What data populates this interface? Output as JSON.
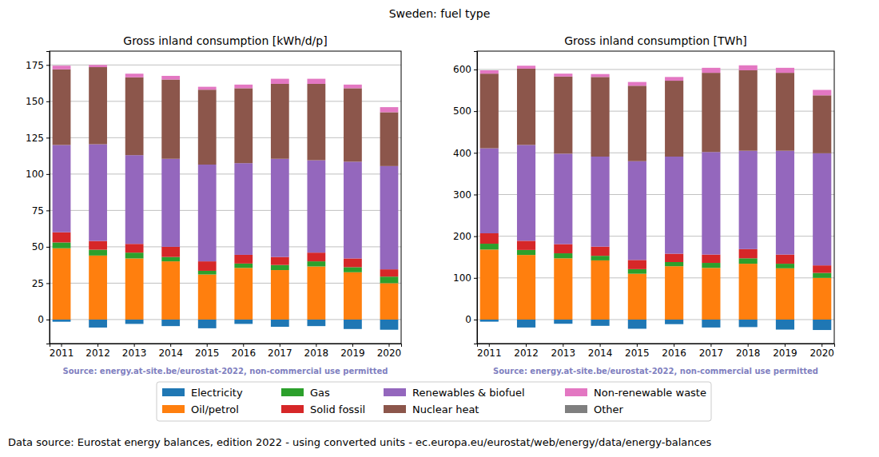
{
  "title": "Sweden: fuel type",
  "footer": "Data source: Eurostat energy balances, edition 2022 - using converted units - ec.europa.eu/eurostat/web/energy/data/energy-balances",
  "chart_data": [
    {
      "type": "bar",
      "stacked": true,
      "grid": true,
      "legend": "bottom",
      "title": "Gross inland consumption [kWh/d/p]",
      "annotation": "Source: energy.at-site.be/eurostat-2022, non-commercial use permitted",
      "categories": [
        "2011",
        "2012",
        "2013",
        "2014",
        "2015",
        "2016",
        "2017",
        "2018",
        "2019",
        "2020"
      ],
      "ylim": [
        -16.5,
        184.5
      ],
      "yticks": [
        0,
        25,
        50,
        75,
        100,
        125,
        150,
        175
      ],
      "series": [
        {
          "name": "Electricity",
          "color": "#1f77b4",
          "values": [
            -1.5,
            -5.5,
            -3,
            -4.5,
            -6,
            -3,
            -5,
            -4.5,
            -6.5,
            -7
          ]
        },
        {
          "name": "Oil/petrol",
          "color": "#ff7f0e",
          "values": [
            49,
            44,
            42,
            40,
            31,
            35.5,
            34,
            36.5,
            32.5,
            25
          ]
        },
        {
          "name": "Gas",
          "color": "#2ca02c",
          "values": [
            4,
            4,
            4,
            3,
            2.5,
            3,
            3.5,
            3.5,
            3.5,
            4.5
          ]
        },
        {
          "name": "Solid fossil",
          "color": "#d62728",
          "values": [
            7,
            6,
            6,
            7,
            6.5,
            6,
            5.5,
            6,
            6,
            5
          ]
        },
        {
          "name": "Renewables & biofuel",
          "color": "#9467bd",
          "values": [
            60,
            66.5,
            61,
            60.5,
            66.5,
            63,
            67.5,
            63.5,
            66.5,
            71
          ]
        },
        {
          "name": "Nuclear heat",
          "color": "#8c564b",
          "values": [
            52,
            53,
            53.5,
            54.5,
            51.5,
            51.5,
            51.5,
            52.5,
            50.5,
            37
          ]
        },
        {
          "name": "Non-renewable waste",
          "color": "#e377c2",
          "values": [
            2.5,
            1.5,
            2.5,
            2.5,
            2,
            2.5,
            3.5,
            3.5,
            2.5,
            3.5
          ]
        },
        {
          "name": "Other",
          "color": "#7f7f7f",
          "values": [
            0,
            0,
            0,
            0,
            0,
            0,
            0,
            0,
            0,
            0
          ]
        }
      ]
    },
    {
      "type": "bar",
      "stacked": true,
      "grid": true,
      "title": "Gross inland consumption [TWh]",
      "annotation": "Source: energy.at-site.be/eurostat-2022, non-commercial use permitted",
      "categories": [
        "2011",
        "2012",
        "2013",
        "2014",
        "2015",
        "2016",
        "2017",
        "2018",
        "2019",
        "2020"
      ],
      "ylim": [
        -57.5,
        644
      ],
      "yticks": [
        0,
        100,
        200,
        300,
        400,
        500,
        600
      ],
      "series": [
        {
          "name": "Electricity",
          "color": "#1f77b4",
          "values": [
            -5,
            -19,
            -10,
            -15,
            -22,
            -11,
            -19,
            -18,
            -24,
            -25
          ]
        },
        {
          "name": "Oil/petrol",
          "color": "#ff7f0e",
          "values": [
            168,
            155,
            147,
            142,
            110,
            128,
            124,
            134,
            123,
            100
          ]
        },
        {
          "name": "Gas",
          "color": "#2ca02c",
          "values": [
            14,
            12,
            12,
            11,
            11,
            10,
            12,
            13,
            11,
            12
          ]
        },
        {
          "name": "Solid fossil",
          "color": "#d62728",
          "values": [
            25,
            22,
            22,
            22,
            22,
            20,
            20,
            22,
            22,
            18
          ]
        },
        {
          "name": "Renewables & biofuel",
          "color": "#9467bd",
          "values": [
            204,
            230,
            217,
            216,
            237,
            233,
            246,
            236,
            249,
            269
          ]
        },
        {
          "name": "Nuclear heat",
          "color": "#8c564b",
          "values": [
            179,
            183,
            185,
            191,
            181,
            182,
            190,
            193,
            187,
            139
          ]
        },
        {
          "name": "Non-renewable waste",
          "color": "#e377c2",
          "values": [
            8,
            7,
            7,
            7,
            9,
            9,
            12,
            12,
            12,
            13
          ]
        },
        {
          "name": "Other",
          "color": "#7f7f7f",
          "values": [
            0,
            0,
            0,
            0,
            0,
            0,
            0,
            0,
            0,
            0
          ]
        }
      ]
    }
  ]
}
